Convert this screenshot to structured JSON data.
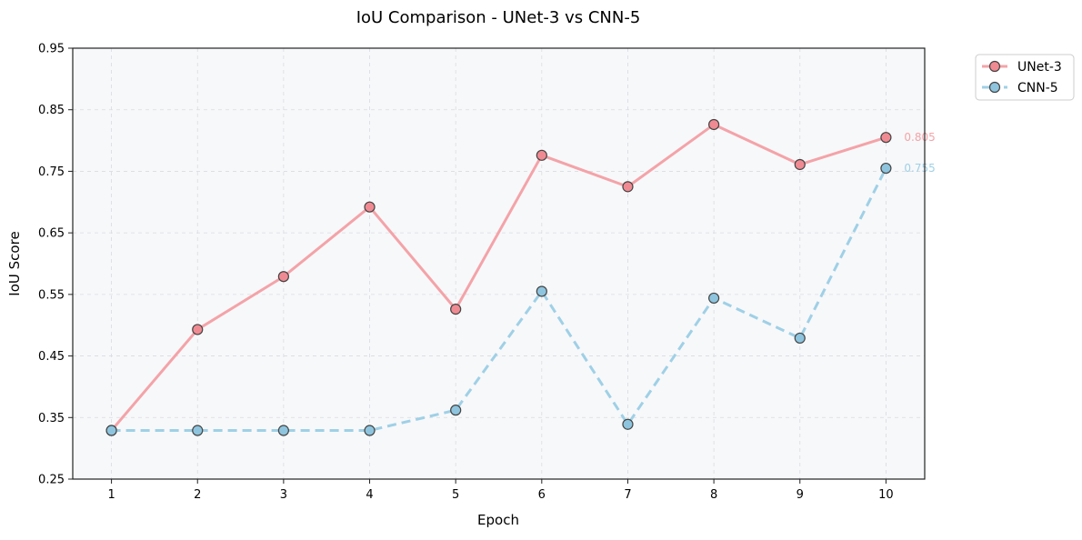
{
  "chart_data": {
    "type": "line",
    "title": "IoU Comparison - UNet-3 vs CNN-5",
    "xlabel": "Epoch",
    "ylabel": "IoU Score",
    "x": [
      1,
      2,
      3,
      4,
      5,
      6,
      7,
      8,
      9,
      10
    ],
    "xlim": [
      0.55,
      10.45
    ],
    "ylim": [
      0.25,
      0.95
    ],
    "yticks": [
      0.25,
      0.35,
      0.45,
      0.55,
      0.65,
      0.75,
      0.85,
      0.95
    ],
    "ytick_labels": [
      "0.25",
      "0.35",
      "0.45",
      "0.55",
      "0.65",
      "0.75",
      "0.85",
      "0.95"
    ],
    "xtick_labels": [
      "1",
      "2",
      "3",
      "4",
      "5",
      "6",
      "7",
      "8",
      "9",
      "10"
    ],
    "grid": true,
    "legend_position": "outside-top-right",
    "background_color": "#f7f8fa",
    "series": [
      {
        "name": "UNet-3",
        "values": [
          0.329,
          0.493,
          0.579,
          0.692,
          0.526,
          0.776,
          0.725,
          0.826,
          0.761,
          0.805
        ],
        "color": "#f4a3a8",
        "marker_fill": "#f08a92",
        "dash": "solid",
        "end_label": "0.805"
      },
      {
        "name": "CNN-5",
        "values": [
          0.329,
          0.329,
          0.329,
          0.329,
          0.362,
          0.555,
          0.339,
          0.544,
          0.479,
          0.755
        ],
        "color": "#9fd0e6",
        "marker_fill": "#8ec4de",
        "dash": "dashed",
        "end_label": "0.755"
      }
    ]
  }
}
